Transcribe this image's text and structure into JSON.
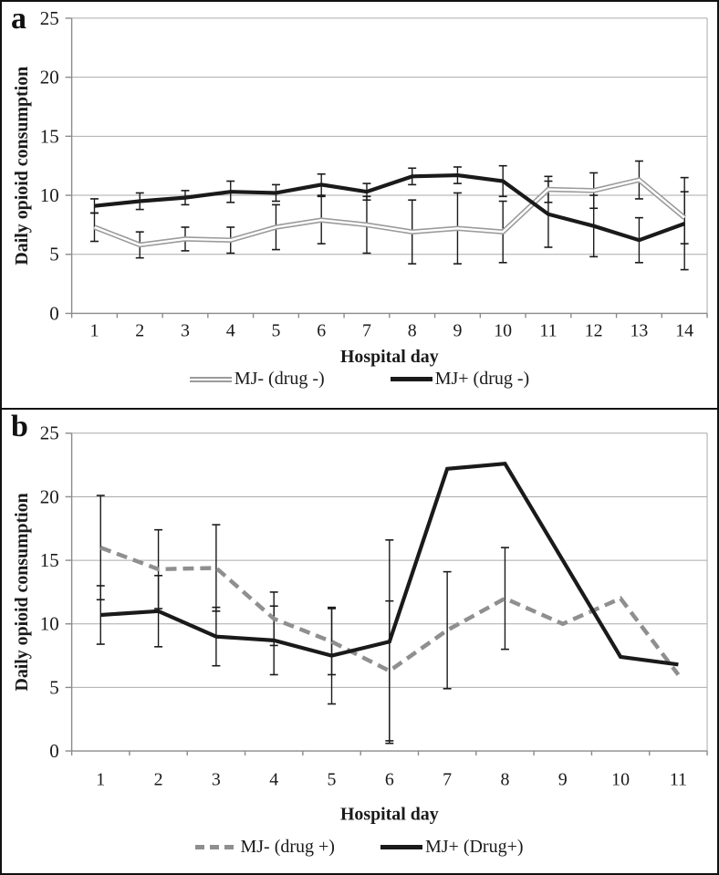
{
  "colors": {
    "gray_line": "#9b9b9b",
    "black_line": "#1a1a1a",
    "grid": "#ababab",
    "axis": "#8a8a8a",
    "error_bar": "#1a1a1a",
    "text": "#1a1a1a",
    "border": "#111111"
  },
  "chart_data": [
    {
      "type": "line",
      "panel_label": "a",
      "xlabel": "Hospital day",
      "ylabel": "Daily opioid consumption",
      "ylim": [
        0,
        25
      ],
      "yticks": [
        0,
        5,
        10,
        15,
        20,
        25
      ],
      "grid": "horizontal",
      "legend_position": "bottom",
      "categories": [
        "1",
        "2",
        "3",
        "4",
        "5",
        "6",
        "7",
        "8",
        "9",
        "10",
        "11",
        "12",
        "13",
        "14"
      ],
      "series": [
        {
          "name": "MJ- (drug -)",
          "style": "double-gray",
          "color": "#9b9b9b",
          "values": [
            7.3,
            5.8,
            6.3,
            6.2,
            7.3,
            7.9,
            7.5,
            6.9,
            7.2,
            6.9,
            10.5,
            10.4,
            11.3,
            8.1
          ],
          "err": [
            1.2,
            1.1,
            1.0,
            1.1,
            1.9,
            2.0,
            2.4,
            2.7,
            3.0,
            2.6,
            1.1,
            1.5,
            1.6,
            2.2
          ]
        },
        {
          "name": "MJ+ (drug -)",
          "style": "solid-black",
          "color": "#1a1a1a",
          "values": [
            9.1,
            9.5,
            9.8,
            10.3,
            10.2,
            10.9,
            10.3,
            11.6,
            11.7,
            11.2,
            8.4,
            7.4,
            6.2,
            7.6
          ],
          "err": [
            0.6,
            0.7,
            0.6,
            0.9,
            0.7,
            0.9,
            0.7,
            0.7,
            0.7,
            1.3,
            2.8,
            2.6,
            1.9,
            3.9
          ]
        }
      ]
    },
    {
      "type": "line",
      "panel_label": "b",
      "xlabel": "Hospital day",
      "ylabel": "Daily opioid consumption",
      "ylim": [
        0,
        25
      ],
      "yticks": [
        0,
        5,
        10,
        15,
        20,
        25
      ],
      "grid": "horizontal",
      "legend_position": "bottom",
      "categories": [
        "1",
        "2",
        "3",
        "4",
        "5",
        "6",
        "7",
        "8",
        "9",
        "10",
        "11"
      ],
      "series": [
        {
          "name": "MJ- (drug +)",
          "style": "dashed-gray",
          "color": "#8f8f8f",
          "values": [
            16.0,
            14.3,
            14.4,
            10.4,
            8.6,
            6.3,
            9.5,
            12.0,
            10.0,
            12.0,
            6.0
          ],
          "err": [
            4.1,
            3.1,
            3.4,
            2.1,
            2.6,
            5.5,
            4.6,
            4.0,
            null,
            null,
            null
          ]
        },
        {
          "name": "MJ+ (Drug+)",
          "style": "solid-black",
          "color": "#1a1a1a",
          "values": [
            10.7,
            11.0,
            9.0,
            8.7,
            7.5,
            8.6,
            22.2,
            22.6,
            15.0,
            7.4,
            6.8
          ],
          "err": [
            2.3,
            2.8,
            2.3,
            2.7,
            3.8,
            8.0,
            null,
            null,
            null,
            null,
            null
          ]
        }
      ]
    }
  ]
}
